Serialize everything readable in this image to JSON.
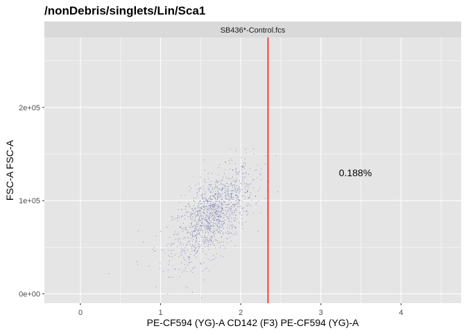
{
  "chart_data": {
    "type": "scatter",
    "title": "/nonDebris/singlets/Lin/Sca1",
    "facet_label": "SB436*-Control.fcs",
    "xlabel": "PE-CF594 (YG)-A CD142 (F3) PE-CF594 (YG)-A",
    "ylabel": "FSC-A FSC-A",
    "xlim": [
      -0.45,
      4.75
    ],
    "ylim": [
      -10000,
      275000
    ],
    "x_ticks": [
      {
        "value": 0,
        "label": "0"
      },
      {
        "value": 1,
        "label": "1"
      },
      {
        "value": 2,
        "label": "2"
      },
      {
        "value": 3,
        "label": "3"
      },
      {
        "value": 4,
        "label": "4"
      }
    ],
    "y_ticks": [
      {
        "value": 0,
        "label": "0e+00"
      },
      {
        "value": 100000,
        "label": "1e+05"
      },
      {
        "value": 200000,
        "label": "2e+05"
      }
    ],
    "gate_x": 2.34,
    "gate_label": {
      "text": "0.188%",
      "x": 3.43,
      "y": 130000
    },
    "colors": {
      "panel": "#e5e5e5",
      "strip": "#d9d9d9",
      "grid": "#ffffff",
      "points": "#4b4b9e",
      "gate": "#ff0000"
    },
    "cloud": {
      "center_x": 1.65,
      "center_y": 85000,
      "sd_x": 0.25,
      "sd_y": 25000,
      "correlation": 0.6,
      "n_points": 1300
    },
    "outliers": [
      {
        "x": 0.35,
        "y": 22000
      },
      {
        "x": 0.7,
        "y": 35000
      },
      {
        "x": 0.72,
        "y": 68000
      },
      {
        "x": 0.85,
        "y": 30000
      },
      {
        "x": 0.92,
        "y": 50000
      },
      {
        "x": 2.3,
        "y": 140000
      },
      {
        "x": 2.46,
        "y": 110000
      },
      {
        "x": 2.2,
        "y": 125000
      },
      {
        "x": 1.1,
        "y": 18000
      }
    ]
  }
}
